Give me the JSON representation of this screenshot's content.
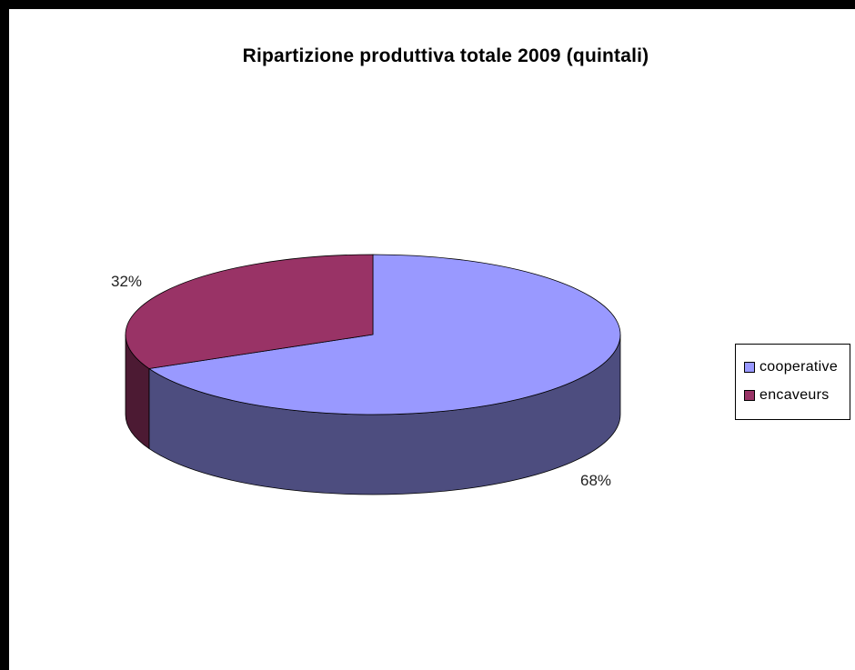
{
  "chart_data": {
    "type": "pie",
    "title": "Ripartizione produttiva totale  2009 (quintali)",
    "style": "3d",
    "slices": [
      {
        "label": "cooperative",
        "value": 68,
        "display": "68%",
        "color": "#9999ff",
        "side_color": "#4d4d7f"
      },
      {
        "label": "encaveurs",
        "value": 32,
        "display": "32%",
        "color": "#993366",
        "side_color": "#4c1a33"
      }
    ],
    "legend": {
      "position": "right",
      "items": [
        "cooperative",
        "encaveurs"
      ]
    }
  }
}
